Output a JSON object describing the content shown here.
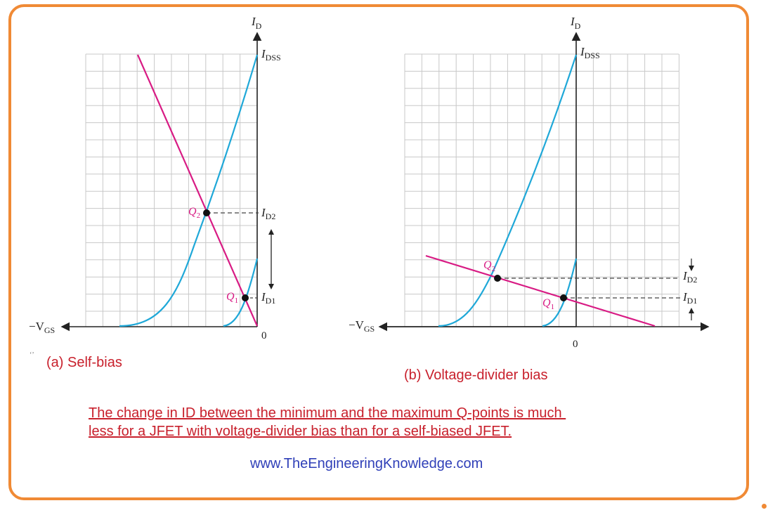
{
  "panel_a": {
    "caption": "(a) Self-bias",
    "y_axis_label": "I",
    "y_axis_sub": "D",
    "x_axis_label": "−V",
    "x_axis_sub": "GS",
    "origin_label": "0",
    "idss_label": "I",
    "idss_sub": "DSS",
    "id2_label": "I",
    "id2_sub": "D2",
    "id1_label": "I",
    "id1_sub": "D1",
    "q2_label": "Q",
    "q2_sub": "2",
    "q1_label": "Q",
    "q1_sub": "1"
  },
  "panel_b": {
    "caption": "(b) Voltage-divider bias",
    "y_axis_label": "I",
    "y_axis_sub": "D",
    "x_axis_label": "−V",
    "x_axis_sub": "GS",
    "origin_label": "0",
    "idss_label": "I",
    "idss_sub": "DSS",
    "id2_label": "I",
    "id2_sub": "D2",
    "id1_label": "I",
    "id1_sub": "D1",
    "q2_label": "Q",
    "q2_sub": "2",
    "q1_label": "Q",
    "q1_sub": "1"
  },
  "stray_mark": "‘’",
  "note": {
    "line1": "The change in ID between the minimum and the maximum Q-points is much ",
    "line2": "less for a JFET with voltage-divider bias than for a self-biased JFET."
  },
  "website": "www.TheEngineeringKnowledge.com",
  "colors": {
    "frame": "#f08a35",
    "curve": "#1fa8d8",
    "load_line": "#d81b84",
    "grid": "#c8c8c8",
    "caption": "#c8202c",
    "website": "#2f3fb8",
    "q_label": "#d81b84"
  }
}
